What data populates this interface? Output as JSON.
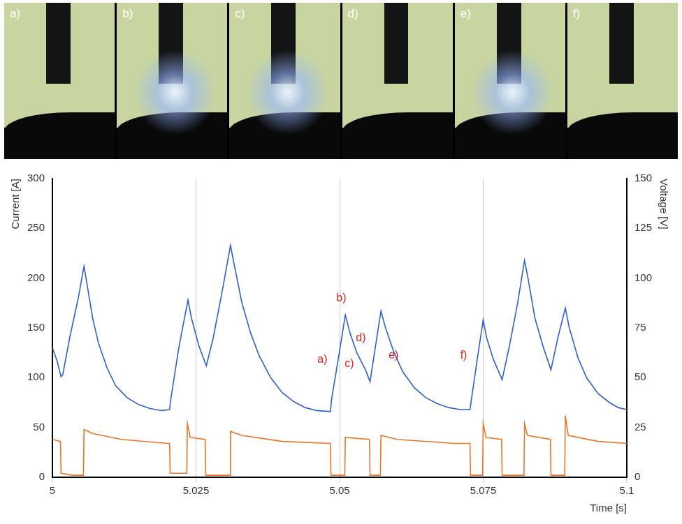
{
  "photo_labels": [
    "a)",
    "b)",
    "c)",
    "d)",
    "e)",
    "f)"
  ],
  "chart_data": {
    "type": "line",
    "x_label": "Time [s]",
    "y_label": "Current [A]",
    "y2_label": "Voltage [V]",
    "xlim": [
      5,
      5.1
    ],
    "xticks": [
      5,
      5.025,
      5.05,
      5.075,
      5.1
    ],
    "ylim": [
      0,
      300
    ],
    "yticks": [
      0,
      50,
      100,
      150,
      200,
      250,
      300
    ],
    "y2lim": [
      0,
      150
    ],
    "y2ticks": [
      0,
      25,
      50,
      75,
      100,
      125,
      150
    ],
    "grid": "x",
    "series": [
      {
        "color": "#2f5fcf",
        "axis": "y",
        "x": [
          5.0,
          5.0008,
          5.0015,
          5.0018,
          5.003,
          5.0045,
          5.0055,
          5.006,
          5.007,
          5.008,
          5.0095,
          5.011,
          5.013,
          5.015,
          5.017,
          5.019,
          5.0204,
          5.0206,
          5.022,
          5.0236,
          5.0242,
          5.0255,
          5.0268,
          5.028,
          5.0295,
          5.031,
          5.0316,
          5.033,
          5.0345,
          5.036,
          5.038,
          5.04,
          5.042,
          5.044,
          5.046,
          5.0484,
          5.0486,
          5.0498,
          5.051,
          5.0518,
          5.053,
          5.0545,
          5.0553,
          5.0562,
          5.0572,
          5.058,
          5.0595,
          5.061,
          5.063,
          5.065,
          5.067,
          5.069,
          5.071,
          5.0727,
          5.073,
          5.074,
          5.075,
          5.0756,
          5.0768,
          5.0783,
          5.0795,
          5.081,
          5.0822,
          5.0828,
          5.084,
          5.0855,
          5.0868,
          5.088,
          5.0893,
          5.09,
          5.0915,
          5.093,
          5.095,
          5.097,
          5.0985,
          5.1
        ],
        "values": [
          130,
          117,
          101,
          103,
          140,
          180,
          212,
          195,
          160,
          135,
          110,
          92,
          80,
          73,
          69,
          67,
          68,
          78,
          130,
          178,
          160,
          132,
          112,
          140,
          185,
          233,
          215,
          175,
          145,
          122,
          100,
          85,
          76,
          70,
          67,
          66,
          78,
          120,
          163,
          145,
          125,
          108,
          96,
          130,
          167,
          150,
          125,
          106,
          90,
          80,
          74,
          70,
          68,
          68,
          80,
          120,
          158,
          140,
          118,
          98,
          130,
          175,
          218,
          200,
          160,
          130,
          108,
          140,
          170,
          150,
          120,
          100,
          84,
          75,
          70,
          68
        ]
      },
      {
        "color": "#e8772a",
        "axis": "y2",
        "x": [
          5.0,
          5.0014,
          5.0015,
          5.0035,
          5.0054,
          5.0055,
          5.007,
          5.012,
          5.02,
          5.0204,
          5.0205,
          5.0234,
          5.0235,
          5.024,
          5.0266,
          5.0267,
          5.0309,
          5.031,
          5.033,
          5.04,
          5.0484,
          5.0485,
          5.0509,
          5.051,
          5.0552,
          5.0553,
          5.0571,
          5.0572,
          5.06,
          5.07,
          5.0727,
          5.0728,
          5.0749,
          5.075,
          5.0755,
          5.0782,
          5.0783,
          5.0821,
          5.0822,
          5.0827,
          5.0867,
          5.0868,
          5.0892,
          5.0893,
          5.0898,
          5.095,
          5.1
        ],
        "values": [
          19,
          18,
          2,
          1,
          1,
          24,
          22,
          19,
          17,
          17,
          2,
          2,
          27,
          20,
          19,
          1,
          1,
          23,
          21,
          18,
          17,
          1,
          1,
          20,
          19,
          1,
          1,
          21,
          19,
          17,
          17,
          1,
          1,
          27,
          20,
          19,
          1,
          1,
          27,
          21,
          19,
          1,
          1,
          31,
          21,
          18,
          17
        ]
      }
    ],
    "annotations": [
      {
        "text": "a)",
        "x": 5.047,
        "y": 118,
        "color": "#e0201b"
      },
      {
        "text": "b)",
        "x": 5.0503,
        "y": 180,
        "color": "#e0201b"
      },
      {
        "text": "c)",
        "x": 5.0517,
        "y": 114,
        "color": "#e0201b"
      },
      {
        "text": "d)",
        "x": 5.0537,
        "y": 140,
        "color": "#e0201b"
      },
      {
        "text": "e)",
        "x": 5.0594,
        "y": 122,
        "color": "#e0201b"
      },
      {
        "text": "f)",
        "x": 5.0716,
        "y": 122,
        "color": "#e0201b"
      }
    ]
  }
}
